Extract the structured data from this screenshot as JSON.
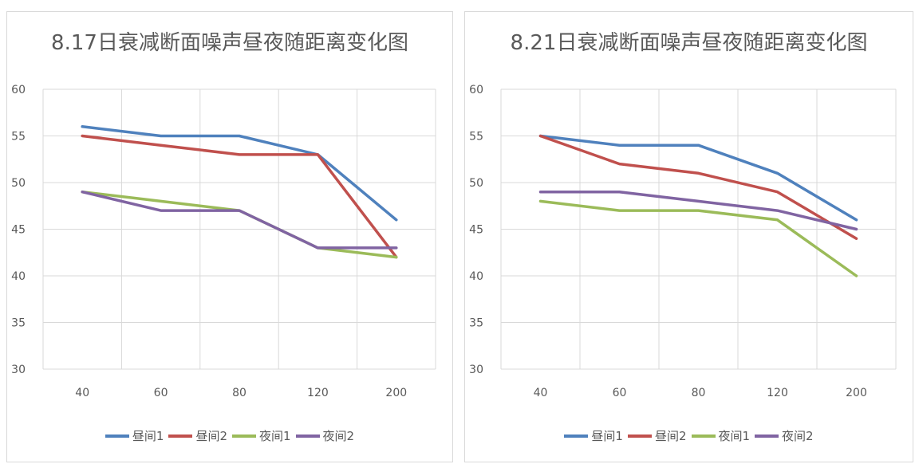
{
  "page_caption": "",
  "chart_data": [
    {
      "type": "line",
      "title": "8.17日衰减断面噪声昼夜随距离变化图",
      "categories": [
        "40",
        "60",
        "80",
        "120",
        "200"
      ],
      "ylim": [
        30,
        60
      ],
      "yticks": [
        30,
        35,
        40,
        45,
        50,
        55,
        60
      ],
      "grid": true,
      "legend_position": "bottom",
      "series": [
        {
          "name": "昼间1",
          "color": "#4f81bd",
          "values": [
            56,
            55,
            55,
            53,
            46
          ]
        },
        {
          "name": "昼间2",
          "color": "#c0504d",
          "values": [
            55,
            54,
            53,
            53,
            42
          ]
        },
        {
          "name": "夜间1",
          "color": "#9bbb59",
          "values": [
            49,
            48,
            47,
            43,
            42
          ]
        },
        {
          "name": "夜间2",
          "color": "#8064a2",
          "values": [
            49,
            47,
            47,
            43,
            43
          ]
        }
      ]
    },
    {
      "type": "line",
      "title": "8.21日衰减断面噪声昼夜随距离变化图",
      "categories": [
        "40",
        "60",
        "80",
        "120",
        "200"
      ],
      "ylim": [
        30,
        60
      ],
      "yticks": [
        30,
        35,
        40,
        45,
        50,
        55,
        60
      ],
      "grid": true,
      "legend_position": "bottom",
      "series": [
        {
          "name": "昼间1",
          "color": "#4f81bd",
          "values": [
            55,
            54,
            54,
            51,
            46
          ]
        },
        {
          "name": "昼间2",
          "color": "#c0504d",
          "values": [
            55,
            52,
            51,
            49,
            44
          ]
        },
        {
          "name": "夜间1",
          "color": "#9bbb59",
          "values": [
            48,
            47,
            47,
            46,
            40
          ]
        },
        {
          "name": "夜间2",
          "color": "#8064a2",
          "values": [
            49,
            49,
            48,
            47,
            45
          ]
        }
      ]
    }
  ]
}
